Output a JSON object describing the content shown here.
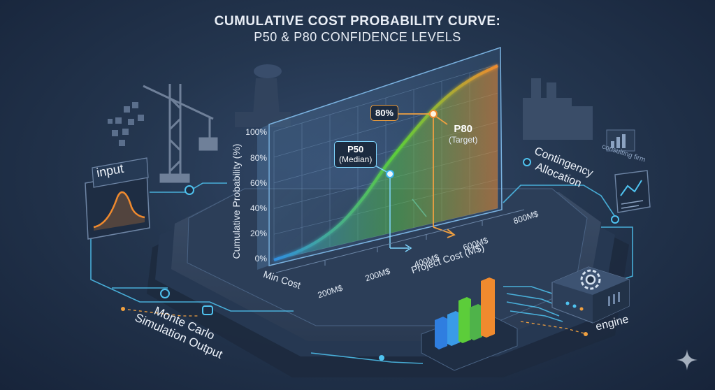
{
  "title": "CUMULATIVE COST PROBABILITY CURVE:",
  "subtitle": "P50 & P80 CONFIDENCE LEVELS",
  "colors": {
    "curve_start": "#2f8de0",
    "curve_mid": "#5ccd3a",
    "curve_end": "#f08a2e",
    "glow": "#48c0f0",
    "accent_orange": "#f0a040",
    "panel": "#2a3c55"
  },
  "chart_data": {
    "type": "line",
    "ylabel": "Cumulative Probability (%)",
    "xlabel": "Project Cost (M$)",
    "y_ticks": [
      "0%",
      "20%",
      "40%",
      "60%",
      "80%",
      "100%"
    ],
    "x_ticks": [
      "Min Cost",
      "200M$",
      "200M$",
      "400M$",
      "600M$",
      "800M$"
    ],
    "ylim": [
      0,
      100
    ],
    "grid": true,
    "series": [
      {
        "x": [
          0,
          0.1,
          0.2,
          0.3,
          0.4,
          0.5,
          0.6,
          0.7,
          0.8,
          0.9,
          1.0
        ],
        "values": [
          0,
          2,
          7,
          16,
          31,
          50,
          66,
          80,
          90,
          96,
          99
        ]
      }
    ],
    "annotations": [
      {
        "name": "P50",
        "label_top": "P50",
        "label_bottom": "(Median)",
        "probability": 50
      },
      {
        "name": "P80",
        "label_top": "P80",
        "label_bottom": "(Target)",
        "probability": 80,
        "tag": "80%"
      }
    ]
  },
  "side_labels": {
    "input": "input",
    "contingency_line1": "Contingency",
    "contingency_line2": "Allocation",
    "consulting": "consulting firm",
    "monte_line1": "Monte Carlo",
    "monte_line2": "Simulation Output",
    "engine": "engine"
  }
}
